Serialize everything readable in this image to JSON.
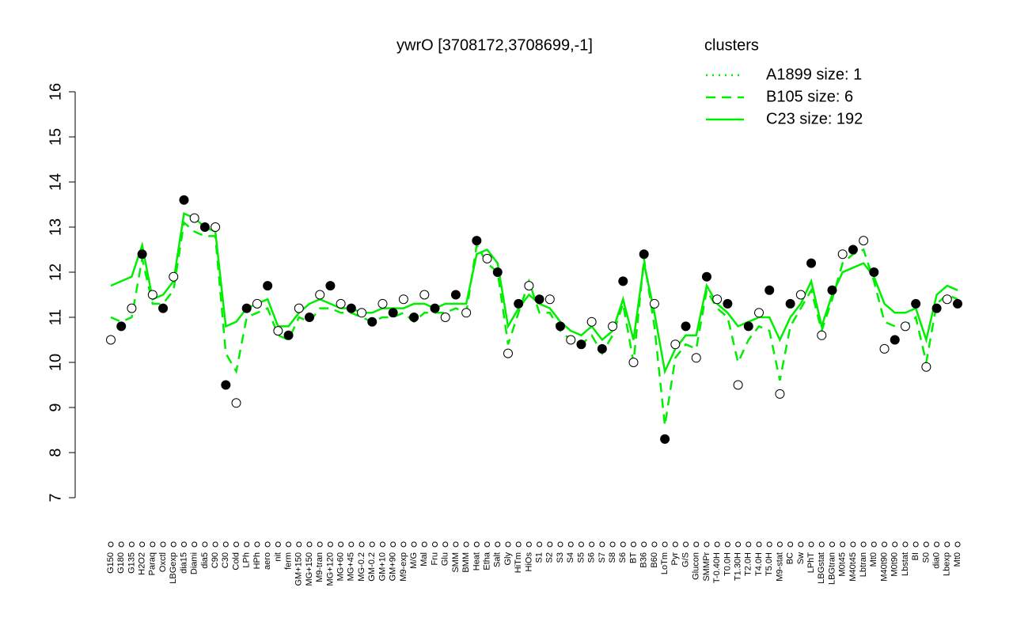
{
  "chart_data": {
    "type": "line",
    "title": "ywrO [3708172,3708699,-1]",
    "legend_title": "clusters",
    "legend_color": "#00ee00",
    "categories": [
      "G150",
      "G180",
      "G135",
      "H2O2",
      "Paraq",
      "Oxctl",
      "LBGexp",
      "dia15",
      "Diami",
      "dia5",
      "C90",
      "C30",
      "Cold",
      "LPh",
      "HPh",
      "aero",
      "nit",
      "ferm",
      "GM+150",
      "MG+150",
      "M9-tran",
      "MG+120",
      "MG+60",
      "MG+45",
      "MG-0.2",
      "GM-0.2",
      "GM+10",
      "GM+90",
      "M9-exp",
      "M/G",
      "Mal",
      "Fru",
      "Glu",
      "SMM",
      "BMM",
      "Heat",
      "Etha",
      "Salt",
      "Gly",
      "HiTm",
      "HiOs",
      "S1",
      "S2",
      "S3",
      "S4",
      "S5",
      "S6",
      "S7",
      "S8",
      "S6",
      "BT",
      "B36",
      "B60",
      "LoTm",
      "Pyr",
      "G/S",
      "Glucon",
      "SMMPr",
      "T-0.40H",
      "T0.0H",
      "T1.30H",
      "T2.0H",
      "T4.0H",
      "T5.0H",
      "M9-stat",
      "BC",
      "Sw",
      "LPhT",
      "LBGstat",
      "LBGtran",
      "M0t45",
      "M40t45",
      "Lbtran",
      "Mt0",
      "M40t90",
      "M0t90",
      "Lbstat",
      "BI",
      "S0",
      "dia0",
      "Lbexp",
      "Mt0"
    ],
    "values": [
      10.5,
      10.8,
      11.2,
      12.4,
      11.5,
      11.2,
      11.9,
      13.6,
      13.2,
      13.0,
      13.0,
      9.5,
      9.1,
      11.2,
      11.3,
      11.7,
      10.7,
      10.6,
      11.2,
      11.0,
      11.5,
      11.7,
      11.3,
      11.2,
      11.1,
      10.9,
      11.3,
      11.1,
      11.4,
      11.0,
      11.5,
      11.2,
      11.0,
      11.5,
      11.1,
      12.7,
      12.3,
      12.0,
      10.2,
      11.3,
      11.7,
      11.4,
      11.4,
      10.8,
      10.5,
      10.4,
      10.9,
      10.3,
      10.8,
      11.8,
      10.0,
      12.4,
      11.3,
      8.3,
      10.4,
      10.8,
      10.1,
      11.9,
      11.4,
      11.3,
      9.5,
      10.8,
      11.1,
      11.6,
      9.3,
      11.3,
      11.5,
      12.2,
      10.6,
      11.6,
      12.4,
      12.5,
      12.7,
      12.0,
      10.3,
      10.5,
      10.8,
      11.3,
      9.9,
      11.2,
      11.4,
      11.3
    ],
    "series": [
      {
        "name": "A1899 size: 1",
        "color": "#00ee00",
        "dash": "dotted",
        "values": [
          null,
          null,
          null,
          null,
          null,
          null,
          null,
          null,
          null,
          null,
          null,
          null,
          null,
          null,
          null,
          null,
          null,
          null,
          null,
          null,
          null,
          null,
          null,
          null,
          null,
          null,
          null,
          null,
          null,
          null,
          null,
          null,
          null,
          null,
          null,
          null,
          null,
          null,
          null,
          null,
          null,
          null,
          null,
          null,
          null,
          null,
          null,
          null,
          null,
          null,
          null,
          null,
          null,
          null,
          null,
          null,
          null,
          null,
          null,
          null,
          null,
          null,
          null,
          null,
          null,
          null,
          null,
          null,
          null,
          null,
          null,
          null,
          null,
          null,
          null,
          null,
          null,
          null,
          null,
          null,
          null,
          null
        ]
      },
      {
        "name": "B105 size: 6",
        "color": "#00ee00",
        "dash": "dashed",
        "values": [
          11.0,
          10.9,
          11.0,
          12.3,
          11.3,
          11.3,
          11.6,
          13.1,
          12.9,
          12.8,
          12.8,
          10.2,
          9.8,
          11.0,
          11.1,
          11.2,
          10.6,
          10.5,
          11.0,
          10.9,
          11.2,
          11.2,
          11.1,
          11.1,
          11.0,
          10.9,
          11.0,
          11.0,
          11.1,
          10.9,
          11.1,
          11.1,
          11.1,
          11.2,
          11.1,
          12.6,
          12.2,
          12.0,
          10.4,
          11.1,
          11.8,
          11.1,
          11.1,
          10.7,
          10.5,
          10.4,
          10.6,
          10.2,
          10.6,
          11.3,
          10.0,
          12.3,
          10.8,
          8.6,
          10.1,
          10.4,
          10.3,
          11.6,
          11.2,
          11.0,
          10.0,
          10.5,
          10.8,
          10.7,
          9.6,
          10.8,
          11.2,
          11.6,
          10.7,
          11.4,
          12.2,
          12.4,
          12.5,
          11.8,
          10.9,
          10.8,
          10.8,
          11.0,
          10.0,
          11.3,
          11.5,
          11.4
        ]
      },
      {
        "name": "C23 size: 192",
        "color": "#00ee00",
        "dash": "solid",
        "values": [
          11.7,
          11.8,
          11.9,
          12.6,
          11.4,
          11.5,
          11.8,
          13.3,
          13.2,
          13.0,
          12.9,
          10.8,
          10.9,
          11.2,
          11.3,
          11.4,
          10.8,
          10.8,
          11.1,
          11.3,
          11.4,
          11.3,
          11.2,
          11.2,
          11.1,
          11.1,
          11.2,
          11.2,
          11.2,
          11.3,
          11.3,
          11.2,
          11.3,
          11.3,
          11.3,
          12.4,
          12.5,
          12.2,
          10.8,
          11.2,
          11.5,
          11.3,
          11.2,
          10.9,
          10.7,
          10.6,
          10.8,
          10.5,
          10.7,
          11.4,
          10.5,
          12.2,
          11.1,
          9.8,
          10.3,
          10.6,
          10.6,
          11.7,
          11.3,
          11.1,
          10.8,
          10.9,
          11.0,
          11.0,
          10.5,
          11.0,
          11.3,
          11.8,
          10.8,
          11.5,
          12.0,
          12.1,
          12.2,
          11.9,
          11.3,
          11.1,
          11.1,
          11.2,
          10.5,
          11.5,
          11.7,
          11.6
        ]
      }
    ],
    "ylim": [
      7,
      16
    ],
    "yticks": [
      7,
      8,
      9,
      10,
      11,
      12,
      13,
      14,
      15,
      16
    ]
  }
}
